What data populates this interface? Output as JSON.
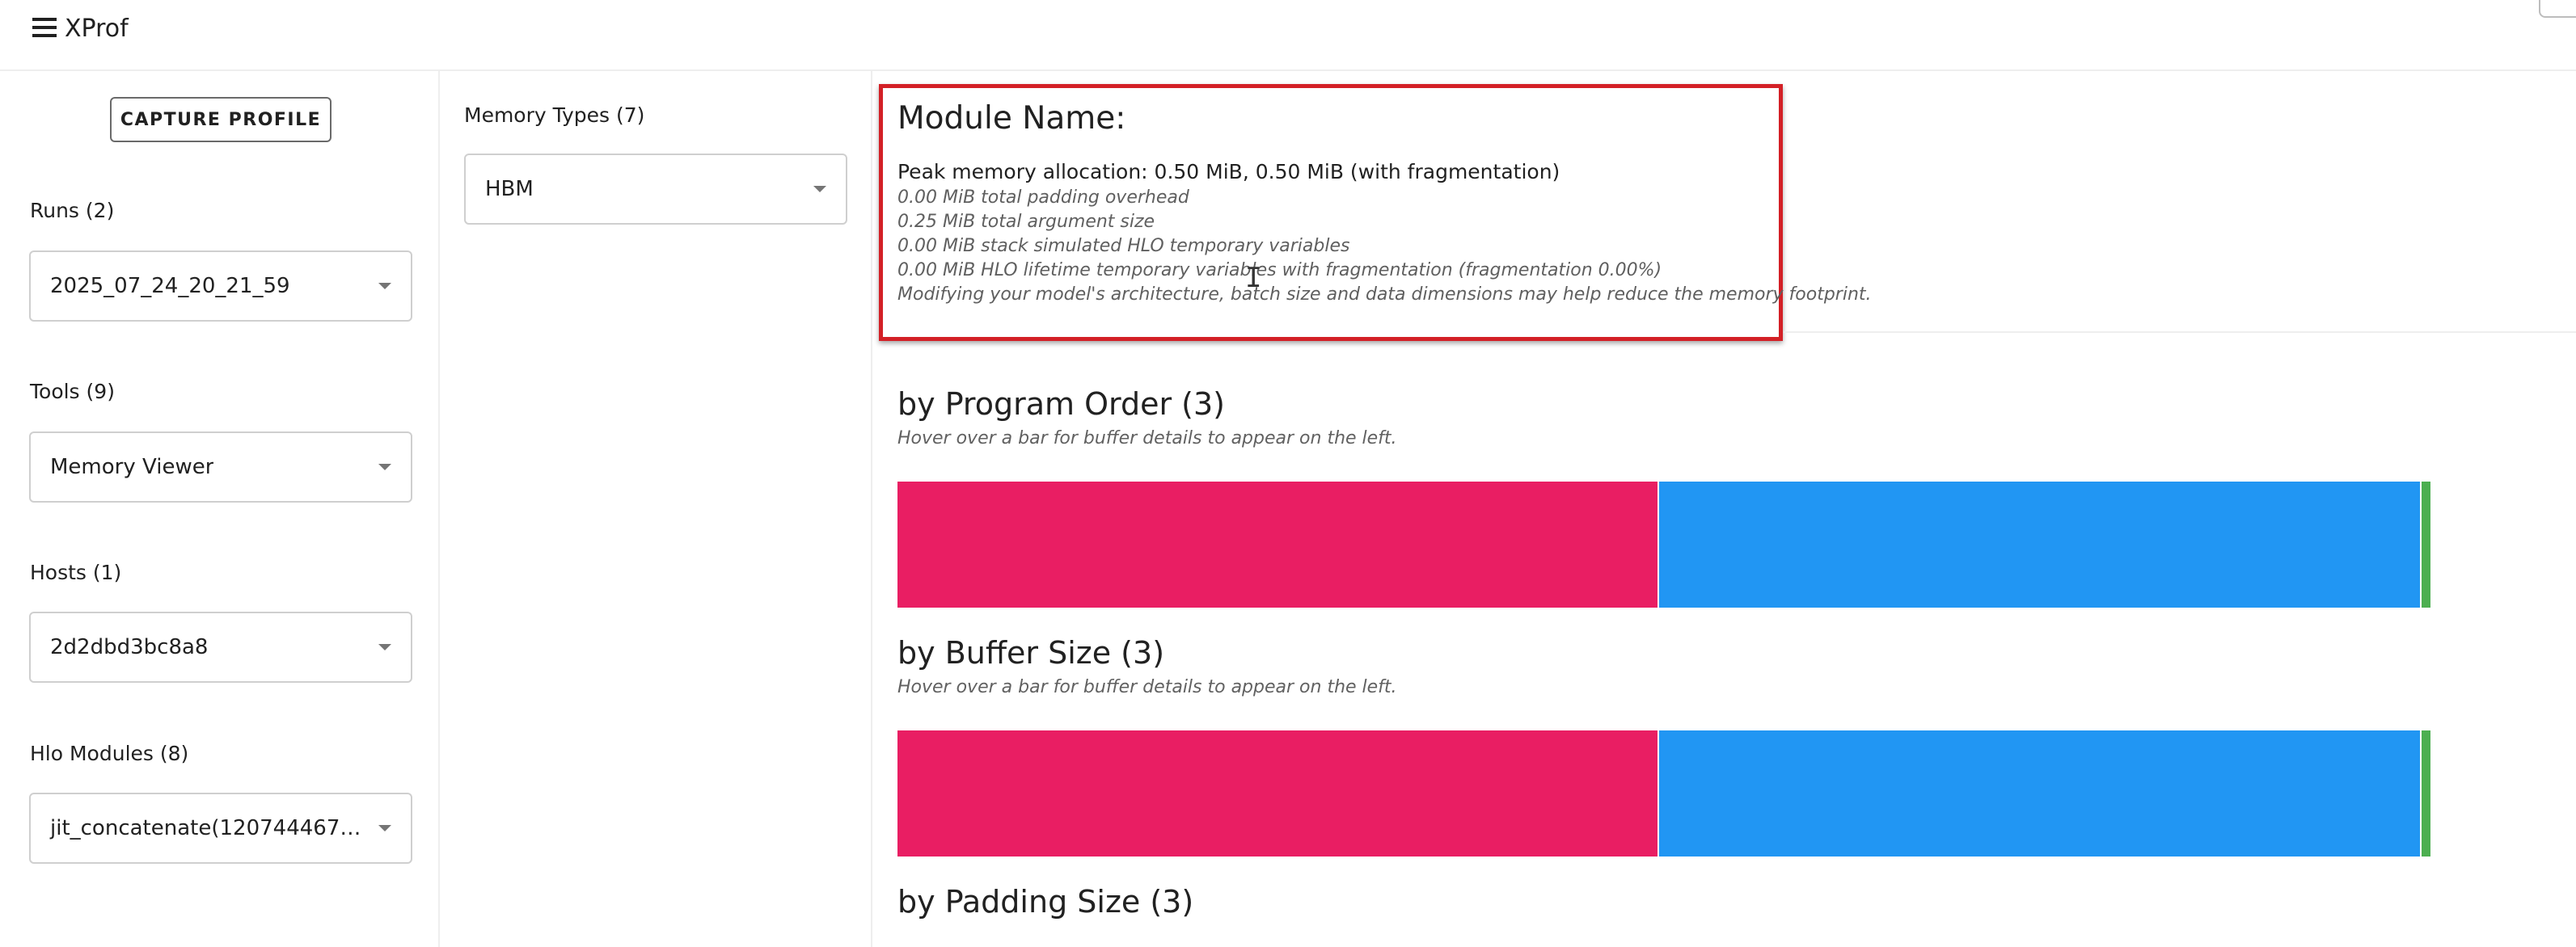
{
  "app": {
    "title": "XProf"
  },
  "sidebar": {
    "capture_label": "CAPTURE PROFILE",
    "runs": {
      "label": "Runs (2)",
      "value": "2025_07_24_20_21_59"
    },
    "tools": {
      "label": "Tools (9)",
      "value": "Memory Viewer"
    },
    "hosts": {
      "label": "Hosts (1)",
      "value": "2d2dbd3bc8a8"
    },
    "modules": {
      "label": "Hlo Modules (8)",
      "value": "jit_concatenate(120744467751..."
    }
  },
  "memory_types": {
    "label": "Memory Types (7)",
    "value": "HBM"
  },
  "summary": {
    "module_name": "Module Name:",
    "peak": "Peak memory allocation: 0.50 MiB, 0.50 MiB (with fragmentation)",
    "notes": [
      "0.00 MiB total padding overhead",
      "0.25 MiB total argument size",
      "0.00 MiB stack simulated HLO temporary variables",
      "0.00 MiB HLO lifetime temporary variables with fragmentation (fragmentation 0.00%)",
      "Modifying your model's architecture, batch size and data dimensions may help reduce the memory footprint."
    ]
  },
  "sections": {
    "program_order": {
      "title": "by Program Order (3)",
      "hint": "Hover over a bar for buffer details to appear on the left."
    },
    "buffer_size": {
      "title": "by Buffer Size (3)",
      "hint": "Hover over a bar for buffer details to appear on the left."
    },
    "padding_size": {
      "title": "by Padding Size (3)"
    }
  },
  "chart_data": [
    {
      "type": "bar",
      "orientation": "horizontal-stacked",
      "chart": "by Program Order (3)",
      "series": [
        {
          "values": [
            0.497
          ],
          "color": "#e91e63"
        },
        {
          "values": [
            0.497
          ],
          "color": "#2196f3"
        },
        {
          "values": [
            0.006
          ],
          "color": "#4caf50"
        }
      ]
    },
    {
      "type": "bar",
      "orientation": "horizontal-stacked",
      "chart": "by Buffer Size (3)",
      "series": [
        {
          "values": [
            0.497
          ],
          "color": "#e91e63"
        },
        {
          "values": [
            0.497
          ],
          "color": "#2196f3"
        },
        {
          "values": [
            0.006
          ],
          "color": "#4caf50"
        }
      ]
    }
  ]
}
